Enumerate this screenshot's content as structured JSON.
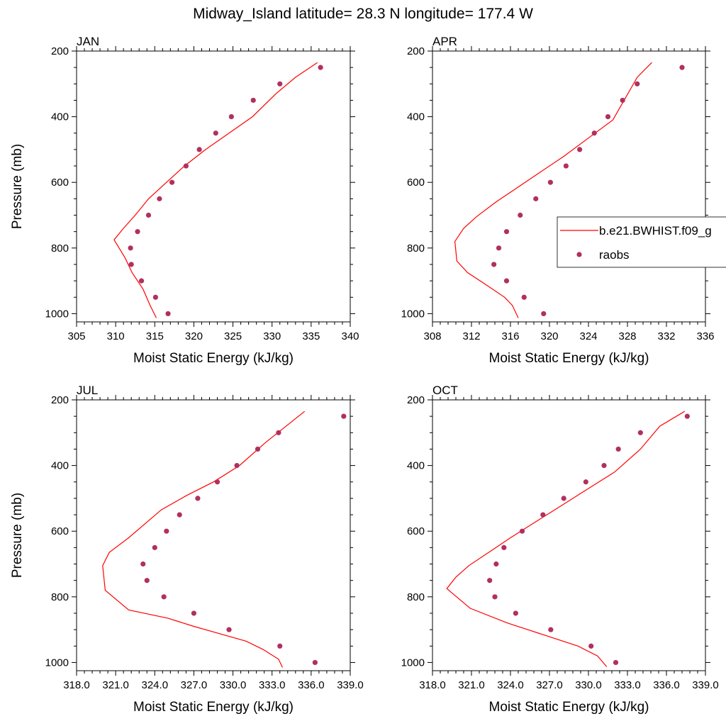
{
  "figure_title": "Midway_Island  latitude= 28.3 N longitude= 177.4 W",
  "legend": {
    "placement": "right-of-APR-panel",
    "entries": [
      {
        "label": "b.e21.BWHIST.f09_g",
        "kind": "line",
        "color": "#ff0000"
      },
      {
        "label": "raobs",
        "kind": "marker",
        "color": "#b03060"
      }
    ]
  },
  "chart_data": [
    {
      "type": "line",
      "title": "JAN",
      "xlabel": "Moist Static Energy (kJ/kg)",
      "ylabel": "Pressure (mb)",
      "xlim": [
        305,
        340
      ],
      "ylim": [
        1025,
        200
      ],
      "xticks": [
        305,
        310,
        315,
        320,
        325,
        330,
        335,
        340
      ],
      "xtick_labels": [
        "305",
        "310",
        "315",
        "320",
        "325",
        "330",
        "335",
        "340"
      ],
      "yticks": [
        200,
        400,
        600,
        800,
        1000
      ],
      "ytick_labels": [
        "200",
        "400",
        "600",
        "800",
        "1000"
      ],
      "series": [
        {
          "name": "b.e21.BWHIST.f09_g",
          "kind": "line",
          "color": "#ff0000",
          "x": [
            315.2,
            314.4,
            313.5,
            312.1,
            311.2,
            309.8,
            311.0,
            312.5,
            314.2,
            316.5,
            318.8,
            321.5,
            324.5,
            327.5,
            330.5,
            333.0,
            335.8
          ],
          "y": [
            1013,
            975,
            925,
            875,
            830,
            775,
            740,
            700,
            650,
            600,
            550,
            500,
            450,
            400,
            330,
            280,
            235
          ]
        },
        {
          "name": "raobs",
          "kind": "scatter",
          "color": "#b03060",
          "x": [
            316.7,
            315.1,
            313.3,
            312.0,
            311.9,
            312.8,
            314.2,
            315.6,
            317.2,
            319.0,
            320.7,
            322.8,
            324.8,
            327.6,
            331.0,
            336.2
          ],
          "y": [
            1000,
            950,
            900,
            850,
            800,
            750,
            700,
            650,
            600,
            550,
            500,
            450,
            400,
            350,
            300,
            250
          ]
        }
      ]
    },
    {
      "type": "line",
      "title": "APR",
      "xlabel": "Moist Static Energy (kJ/kg)",
      "ylabel": "",
      "xlim": [
        308,
        336
      ],
      "ylim": [
        1025,
        200
      ],
      "xticks": [
        308,
        312,
        316,
        320,
        324,
        328,
        332,
        336
      ],
      "xtick_labels": [
        "308",
        "312",
        "316",
        "320",
        "324",
        "328",
        "332",
        "336"
      ],
      "yticks": [
        200,
        400,
        600,
        800,
        1000
      ],
      "ytick_labels": [
        "200",
        "400",
        "600",
        "800",
        "1000"
      ],
      "series": [
        {
          "name": "b.e21.BWHIST.f09_g",
          "kind": "line",
          "color": "#ff0000",
          "x": [
            316.8,
            316.2,
            315.4,
            313.4,
            311.6,
            310.5,
            310.3,
            311.2,
            312.5,
            314.5,
            316.5,
            319.0,
            321.5,
            324.0,
            326.5,
            329.0,
            330.5
          ],
          "y": [
            1013,
            975,
            950,
            910,
            875,
            840,
            780,
            740,
            705,
            660,
            620,
            570,
            520,
            465,
            410,
            280,
            235
          ]
        },
        {
          "name": "raobs",
          "kind": "scatter",
          "color": "#b03060",
          "x": [
            319.4,
            317.4,
            315.6,
            314.3,
            314.8,
            315.6,
            317.0,
            318.6,
            320.1,
            321.7,
            323.1,
            324.6,
            326.0,
            327.5,
            329.0,
            333.6
          ],
          "y": [
            1000,
            950,
            900,
            850,
            800,
            750,
            700,
            650,
            600,
            550,
            500,
            450,
            400,
            350,
            300,
            250
          ]
        }
      ]
    },
    {
      "type": "line",
      "title": "JUL",
      "xlabel": "Moist Static Energy (kJ/kg)",
      "ylabel": "Pressure (mb)",
      "xlim": [
        318,
        339
      ],
      "ylim": [
        1025,
        200
      ],
      "xticks": [
        318,
        321,
        324,
        327,
        330,
        333,
        336,
        339
      ],
      "xtick_labels": [
        "318.0",
        "321.0",
        "324.0",
        "327.0",
        "330.0",
        "333.0",
        "336.0",
        "339.0"
      ],
      "yticks": [
        200,
        400,
        600,
        800,
        1000
      ],
      "ytick_labels": [
        "200",
        "400",
        "600",
        "800",
        "1000"
      ],
      "series": [
        {
          "name": "b.e21.BWHIST.f09_g",
          "kind": "line",
          "color": "#ff0000",
          "x": [
            333.8,
            333.5,
            332.3,
            331.0,
            327.0,
            325.0,
            322.0,
            320.2,
            320.0,
            320.5,
            322.0,
            324.5,
            326.5,
            328.5,
            330.5,
            332.5,
            335.5
          ],
          "y": [
            1015,
            990,
            960,
            935,
            890,
            865,
            840,
            780,
            705,
            665,
            620,
            535,
            490,
            450,
            400,
            330,
            235
          ]
        },
        {
          "name": "raobs",
          "kind": "scatter",
          "color": "#b03060",
          "x": [
            336.3,
            333.6,
            329.7,
            327.0,
            324.7,
            323.4,
            323.1,
            324.0,
            324.9,
            325.9,
            327.3,
            328.8,
            330.3,
            331.9,
            333.5,
            338.5
          ],
          "y": [
            1000,
            950,
            900,
            850,
            800,
            750,
            700,
            650,
            600,
            550,
            500,
            450,
            400,
            350,
            300,
            250
          ]
        }
      ]
    },
    {
      "type": "line",
      "title": "OCT",
      "xlabel": "Moist Static Energy (kJ/kg)",
      "ylabel": "",
      "xlim": [
        318,
        339
      ],
      "ylim": [
        1025,
        200
      ],
      "xticks": [
        318,
        321,
        324,
        327,
        330,
        333,
        336,
        339
      ],
      "xtick_labels": [
        "318.0",
        "321.0",
        "324.0",
        "327.0",
        "330.0",
        "333.0",
        "336.0",
        "339.0"
      ],
      "yticks": [
        200,
        400,
        600,
        800,
        1000
      ],
      "ytick_labels": [
        "200",
        "400",
        "600",
        "800",
        "1000"
      ],
      "series": [
        {
          "name": "b.e21.BWHIST.f09_g",
          "kind": "line",
          "color": "#ff0000",
          "x": [
            331.4,
            330.7,
            329.2,
            326.5,
            323.8,
            320.9,
            319.1,
            319.8,
            320.8,
            322.5,
            324.0,
            326.0,
            328.0,
            330.0,
            332.0,
            334.0,
            335.5,
            337.4
          ],
          "y": [
            1013,
            980,
            950,
            915,
            880,
            835,
            775,
            740,
            705,
            660,
            620,
            570,
            520,
            470,
            420,
            350,
            280,
            235
          ]
        },
        {
          "name": "raobs",
          "kind": "scatter",
          "color": "#b03060",
          "x": [
            332.1,
            330.2,
            327.1,
            324.4,
            322.8,
            322.4,
            322.9,
            323.5,
            324.9,
            326.5,
            328.1,
            329.8,
            331.2,
            332.3,
            334.0,
            337.6
          ],
          "y": [
            1000,
            950,
            900,
            850,
            800,
            750,
            700,
            650,
            600,
            550,
            500,
            450,
            400,
            350,
            300,
            250
          ]
        }
      ]
    }
  ]
}
